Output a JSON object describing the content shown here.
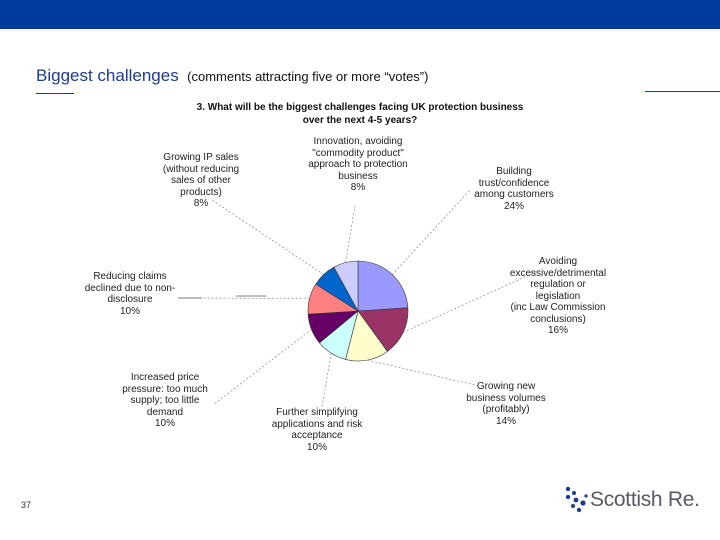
{
  "slide": {
    "heading": "Biggest challenges",
    "subheading": "(comments attracting five or more “votes”)",
    "page_number": "37"
  },
  "logo": {
    "text": "Scottish Re."
  },
  "chart_data": {
    "type": "pie",
    "title_lines": [
      "3. What will be the biggest challenges facing UK protection business",
      "over the next 4-5 years?"
    ],
    "slices": [
      {
        "lines": [
          "Building",
          "trust/confidence",
          "among customers",
          "24%"
        ],
        "value": 24,
        "color": "#9999ff"
      },
      {
        "lines": [
          "Avoiding",
          "excessive/detrimental",
          "regulation or",
          "legislation",
          "(inc Law Commission",
          "conclusions)",
          "16%"
        ],
        "value": 16,
        "color": "#993366"
      },
      {
        "lines": [
          "Growing new",
          "business volumes",
          "(profitably)",
          "14%"
        ],
        "value": 14,
        "color": "#ffffcc"
      },
      {
        "lines": [
          "Further simplifying",
          "applications and risk",
          "acceptance",
          "10%"
        ],
        "value": 10,
        "color": "#ccffff"
      },
      {
        "lines": [
          "Increased price",
          "pressure: too much",
          "supply; too little",
          "demand",
          "10%"
        ],
        "value": 10,
        "color": "#660066"
      },
      {
        "lines": [
          "Reducing claims",
          "declined due to non-",
          "disclosure",
          "10%"
        ],
        "value": 10,
        "color": "#ff8080"
      },
      {
        "lines": [
          "Growing IP sales",
          "(without reducing",
          "sales of other",
          "products)",
          "8%"
        ],
        "value": 8,
        "color": "#0066cc"
      },
      {
        "lines": [
          "Innovation, avoiding",
          "\"commodity product\"",
          "approach to protection",
          "business",
          "8%"
        ],
        "value": 8,
        "color": "#ccccff"
      }
    ]
  }
}
